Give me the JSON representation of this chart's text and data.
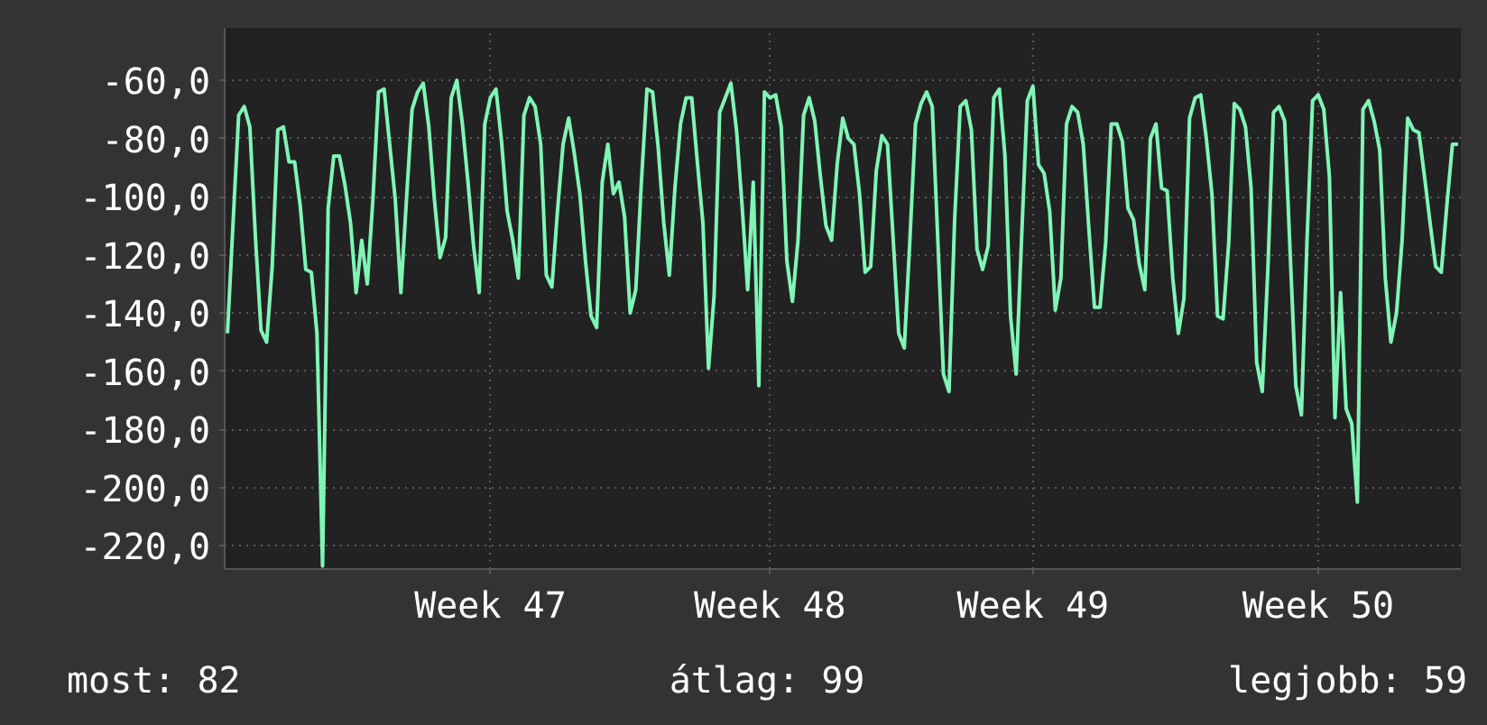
{
  "chart_data": {
    "type": "line",
    "series": [
      {
        "color": "#7ff5b6",
        "values": [
          -147,
          -109,
          -72,
          -69,
          -76,
          -114,
          -146,
          -150,
          -124,
          -77,
          -76,
          -88,
          -88,
          -103,
          -125,
          -126,
          -147,
          -227,
          -104,
          -86,
          -86,
          -96,
          -109,
          -133,
          -115,
          -130,
          -101,
          -64,
          -63,
          -82,
          -101,
          -133,
          -101,
          -70,
          -64,
          -61,
          -76,
          -101,
          -121,
          -114,
          -66,
          -60,
          -75,
          -95,
          -117,
          -133,
          -75,
          -66,
          -63,
          -81,
          -105,
          -115,
          -128,
          -72,
          -66,
          -69,
          -82,
          -127,
          -131,
          -105,
          -82,
          -73,
          -85,
          -99,
          -122,
          -141,
          -145,
          -95,
          -82,
          -99,
          -95,
          -107,
          -140,
          -132,
          -95,
          -63,
          -64,
          -83,
          -109,
          -127,
          -97,
          -75,
          -66,
          -66,
          -88,
          -109,
          -159,
          -134,
          -71,
          -66,
          -61,
          -77,
          -103,
          -132,
          -95,
          -165,
          -64,
          -66,
          -65,
          -76,
          -122,
          -136,
          -115,
          -72,
          -66,
          -74,
          -93,
          -110,
          -115,
          -89,
          -73,
          -80,
          -82,
          -99,
          -126,
          -124,
          -91,
          -79,
          -82,
          -114,
          -147,
          -152,
          -115,
          -75,
          -68,
          -64,
          -69,
          -115,
          -161,
          -167,
          -108,
          -69,
          -67,
          -77,
          -118,
          -125,
          -117,
          -66,
          -63,
          -86,
          -141,
          -161,
          -113,
          -67,
          -62,
          -89,
          -92,
          -105,
          -139,
          -128,
          -75,
          -69,
          -71,
          -82,
          -111,
          -138,
          -138,
          -116,
          -75,
          -75,
          -81,
          -104,
          -108,
          -123,
          -132,
          -80,
          -75,
          -97,
          -98,
          -128,
          -147,
          -135,
          -73,
          -66,
          -65,
          -80,
          -99,
          -141,
          -142,
          -116,
          -68,
          -70,
          -76,
          -97,
          -157,
          -167,
          -125,
          -71,
          -69,
          -74,
          -120,
          -165,
          -175,
          -115,
          -67,
          -65,
          -70,
          -93,
          -176,
          -133,
          -173,
          -178,
          -205,
          -70,
          -67,
          -74,
          -84,
          -128,
          -150,
          -140,
          -115,
          -73,
          -77,
          -78,
          -93,
          -109,
          -124,
          -126,
          -103,
          -82,
          -82
        ]
      }
    ],
    "categories": [
      null,
      null,
      null,
      null,
      null,
      null,
      null,
      null,
      null,
      null,
      null,
      null,
      null,
      null,
      null,
      null,
      null,
      null,
      null,
      null,
      null,
      null,
      null,
      null,
      null,
      null,
      null,
      null,
      null,
      null,
      null,
      null,
      null,
      null,
      null,
      null,
      null,
      null,
      null,
      null,
      null,
      null,
      null,
      null,
      null,
      null,
      null,
      "Week 47",
      null,
      null,
      null,
      null,
      null,
      null,
      null,
      null,
      null,
      null,
      null,
      null,
      null,
      null,
      null,
      null,
      null,
      null,
      null,
      null,
      null,
      null,
      null,
      null,
      null,
      null,
      null,
      null,
      null,
      null,
      null,
      null,
      null,
      null,
      null,
      null,
      null,
      null,
      null,
      null,
      null,
      null,
      null,
      null,
      null,
      null,
      null,
      null,
      null,
      "Week 48",
      null,
      null,
      null,
      null,
      null,
      null,
      null,
      null,
      null,
      null,
      null,
      null,
      null,
      null,
      null,
      null,
      null,
      null,
      null,
      null,
      null,
      null,
      null,
      null,
      null,
      null,
      null,
      null,
      null,
      null,
      null,
      null,
      null,
      null,
      null,
      null,
      null,
      null,
      null,
      null,
      null,
      null,
      null,
      null,
      null,
      null,
      "Week 49",
      null,
      null,
      null,
      null,
      null,
      null,
      null,
      null,
      null,
      null,
      null,
      null,
      null,
      null,
      null,
      null,
      null,
      null,
      null,
      null,
      null,
      null,
      null,
      null,
      null,
      null,
      null,
      null,
      null,
      null,
      null,
      null,
      null,
      null,
      null,
      null,
      null,
      null,
      null,
      null,
      null,
      null,
      null,
      null,
      null,
      null,
      null,
      null,
      null,
      null,
      "Week 50",
      null,
      null,
      null,
      null,
      null,
      null,
      null,
      null,
      null,
      null,
      null,
      null,
      null,
      null,
      null,
      null,
      null,
      null,
      null,
      null,
      null,
      null,
      null,
      null,
      null
    ],
    "ylim": [
      -228,
      -42
    ],
    "yticks": [
      {
        "value": -60,
        "label": "-60,0"
      },
      {
        "value": -80,
        "label": "-80,0"
      },
      {
        "value": -100,
        "label": "-100,0"
      },
      {
        "value": -120,
        "label": "-120,0"
      },
      {
        "value": -140,
        "label": "-140,0"
      },
      {
        "value": -160,
        "label": "-160,0"
      },
      {
        "value": -180,
        "label": "-180,0"
      },
      {
        "value": -200,
        "label": "-200,0"
      },
      {
        "value": -220,
        "label": "-220,0"
      }
    ],
    "grid": true,
    "annotations": [
      "most: 82",
      "átlag: 99",
      "legjobb: 59"
    ]
  }
}
